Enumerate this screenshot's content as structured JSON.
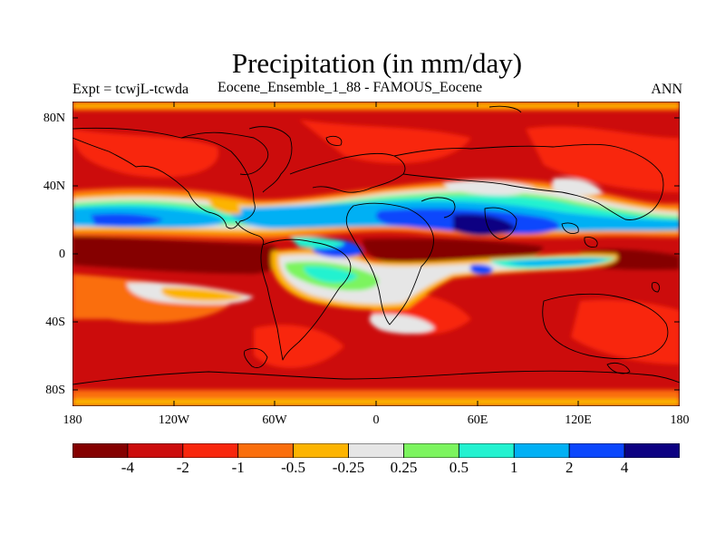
{
  "title": "Precipitation (in mm/day)",
  "subtitle_left": "Expt = tcwjL-tcwda",
  "subtitle_center": "Eocene_Ensemble_1_88 - FAMOUS_Eocene",
  "subtitle_right": "ANN",
  "lat_labels": [
    "80N",
    "40N",
    "0",
    "40S",
    "80S"
  ],
  "lon_labels": [
    "180",
    "120W",
    "60W",
    "0",
    "60E",
    "120E",
    "180"
  ],
  "colorbar": {
    "labels": [
      "-4",
      "-2",
      "-1",
      "-0.5",
      "-0.25",
      "0.25",
      "0.5",
      "1",
      "2",
      "4"
    ],
    "colors": [
      "#850000",
      "#cc0c0c",
      "#f8260c",
      "#fa6e0c",
      "#fcb400",
      "#e6e6e6",
      "#7cf45e",
      "#22f2d0",
      "#00b0f4",
      "#0a46fc",
      "#0c0082"
    ]
  }
}
